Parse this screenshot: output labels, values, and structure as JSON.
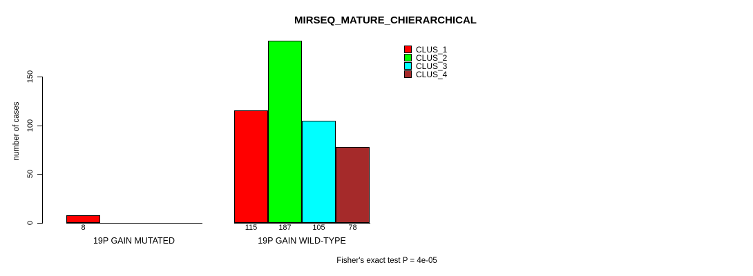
{
  "chart_data": {
    "type": "bar",
    "title": "MIRSEQ_MATURE_CHIERARCHICAL",
    "ylabel": "number of cases",
    "xlabel": "",
    "yticks": [
      0,
      50,
      100,
      150
    ],
    "ylim": [
      0,
      190
    ],
    "grid": false,
    "legend_position": "top-right",
    "categories": [
      "19P GAIN MUTATED",
      "19P GAIN WILD-TYPE"
    ],
    "series": [
      {
        "name": "CLUS_1",
        "color": "#FF0000",
        "values": [
          8,
          115
        ]
      },
      {
        "name": "CLUS_2",
        "color": "#00FF00",
        "values": [
          0,
          187
        ]
      },
      {
        "name": "CLUS_3",
        "color": "#00FFFF",
        "values": [
          0,
          105
        ]
      },
      {
        "name": "CLUS_4",
        "color": "#A52A2A",
        "values": [
          0,
          78
        ]
      }
    ],
    "bar_value_labels": [
      "8",
      "115",
      "187",
      "105",
      "78"
    ],
    "annotation": "Fisher's exact test P = 4e-05"
  }
}
